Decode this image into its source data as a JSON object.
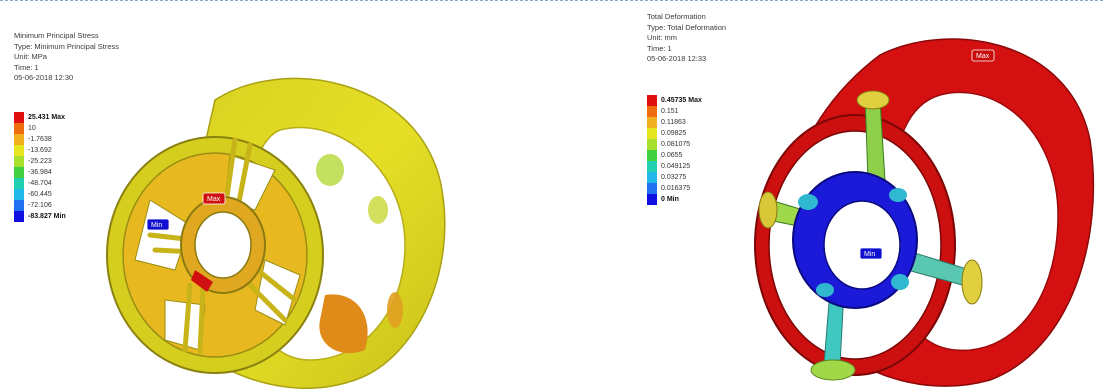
{
  "left_panel": {
    "header": [
      "Minimum Principal Stress",
      "Type: Minimum Principal Stress",
      "Unit: MPa",
      "Time: 1",
      "05-06-2018 12:30"
    ],
    "legend": [
      {
        "label": "25.431 Max",
        "color": "#e01010",
        "bold": true
      },
      {
        "label": "10",
        "color": "#f06c10",
        "bold": false
      },
      {
        "label": "-1.7638",
        "color": "#f0b020",
        "bold": false
      },
      {
        "label": "-13.692",
        "color": "#e6e620",
        "bold": false
      },
      {
        "label": "-25.223",
        "color": "#a8e030",
        "bold": false
      },
      {
        "label": "-36.984",
        "color": "#40d040",
        "bold": false
      },
      {
        "label": "-48.704",
        "color": "#20d0b0",
        "bold": false
      },
      {
        "label": "-60.445",
        "color": "#20b8e8",
        "bold": false
      },
      {
        "label": "-72.106",
        "color": "#2070f0",
        "bold": false
      },
      {
        "label": "-83.827 Min",
        "color": "#1010e0",
        "bold": true
      }
    ],
    "probes": {
      "max": "Max",
      "min": "Min"
    }
  },
  "right_panel": {
    "header": [
      "Total Deformation",
      "Type: Total Deformation",
      "Unit: mm",
      "Time: 1",
      "05-06-2018 12:33"
    ],
    "legend": [
      {
        "label": "0.45735 Max",
        "color": "#e01010",
        "bold": true
      },
      {
        "label": "0.151",
        "color": "#f06c10",
        "bold": false
      },
      {
        "label": "0.11863",
        "color": "#f0b020",
        "bold": false
      },
      {
        "label": "0.09825",
        "color": "#e6e620",
        "bold": false
      },
      {
        "label": "0.081075",
        "color": "#a8e030",
        "bold": false
      },
      {
        "label": "0.0655",
        "color": "#40d040",
        "bold": false
      },
      {
        "label": "0.049125",
        "color": "#20d0b0",
        "bold": false
      },
      {
        "label": "0.03275",
        "color": "#20b8e8",
        "bold": false
      },
      {
        "label": "0.016375",
        "color": "#2070f0",
        "bold": false
      },
      {
        "label": "0 Min",
        "color": "#1010e0",
        "bold": true
      }
    ],
    "probes": {
      "max": "Max",
      "min": "Min"
    }
  }
}
